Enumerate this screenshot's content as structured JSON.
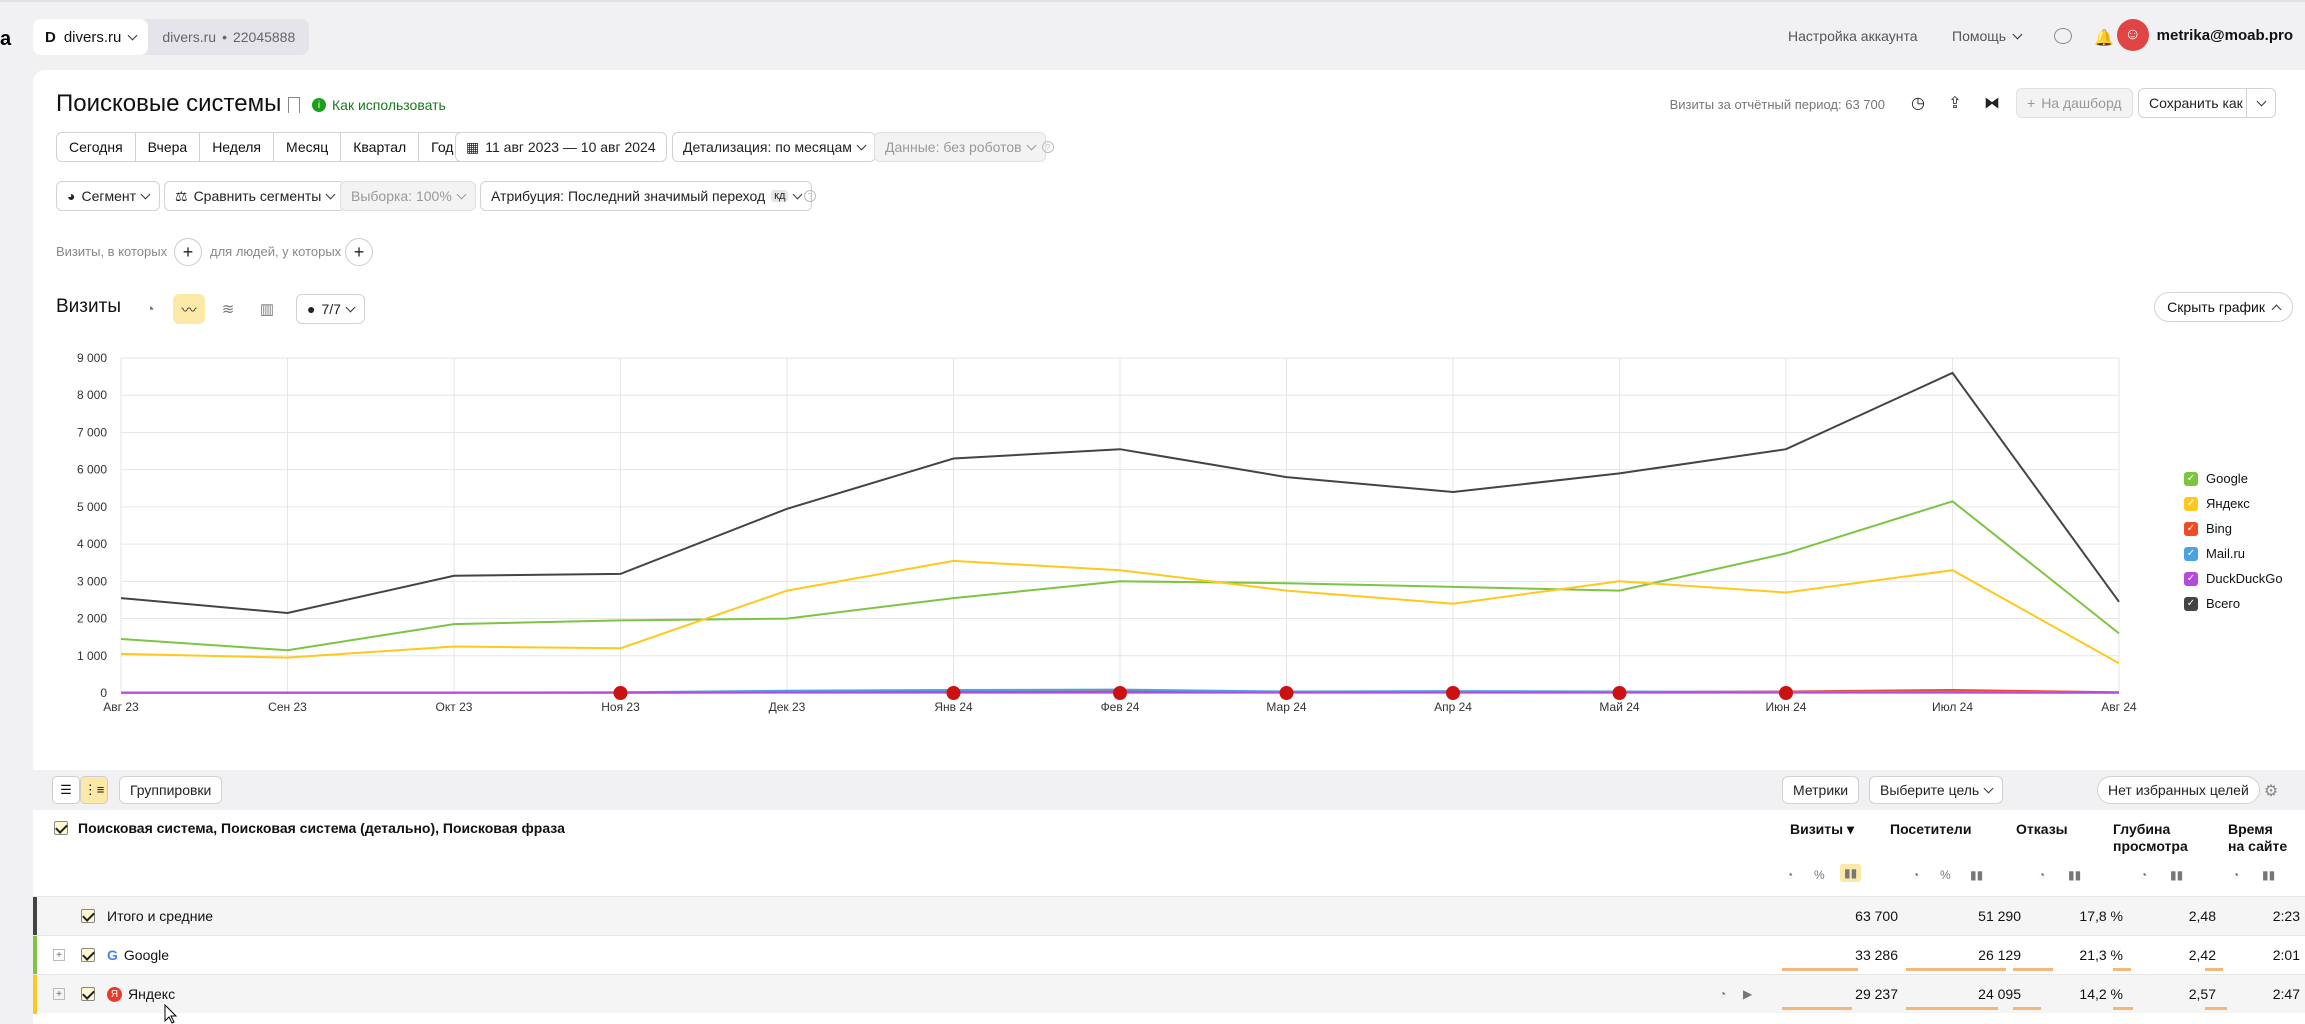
{
  "topbar": {
    "counter_name": "divers.ru",
    "counter_site": "divers.ru",
    "counter_id": "22045888",
    "account_settings": "Настройка аккаунта",
    "help": "Помощь",
    "user_email": "metrika@moab.pro"
  },
  "report": {
    "title": "Поисковые системы",
    "how_to_use": "Как использовать",
    "visits_period": "Визиты за отчётный период: 63 700",
    "to_dashboard": "На дашборд",
    "save_as": "Сохранить как"
  },
  "periods": [
    "Сегодня",
    "Вчера",
    "Неделя",
    "Месяц",
    "Квартал",
    "Год"
  ],
  "date_range": "11 авг 2023 — 10 авг 2024",
  "detail": "Детализация: по месяцам",
  "data_filter": "Данные: без роботов",
  "segment": "Сегмент",
  "compare_segments": "Сравнить сегменты",
  "sample": "Выборка: 100%",
  "attribution": "Атрибуция: Последний значимый переход",
  "attribution_badge": "кд",
  "filter": {
    "visits_where": "Визиты, в которых",
    "people_where": "для людей, у которых"
  },
  "chart_header": {
    "title": "Визиты",
    "series_count": "7/7",
    "hide_chart": "Скрыть график"
  },
  "chart_data": {
    "type": "line",
    "categories": [
      "Авг 23",
      "Сен 23",
      "Окт 23",
      "Ноя 23",
      "Дек 23",
      "Янв 24",
      "Фев 24",
      "Мар 24",
      "Апр 24",
      "Май 24",
      "Июн 24",
      "Июл 24",
      "Авг 24"
    ],
    "ylim": [
      0,
      9000
    ],
    "yticks": [
      "0",
      "1 000",
      "2 000",
      "3 000",
      "4 000",
      "5 000",
      "6 000",
      "7 000",
      "8 000",
      "9 000"
    ],
    "grid": true,
    "legend": "right",
    "series": [
      {
        "name": "Google",
        "color": "#7cc442",
        "values": [
          1450,
          1150,
          1850,
          1950,
          2000,
          2550,
          3000,
          2950,
          2850,
          2750,
          3750,
          5150,
          1600
        ]
      },
      {
        "name": "Яндекс",
        "color": "#ffc81e",
        "values": [
          1050,
          950,
          1250,
          1200,
          2750,
          3550,
          3300,
          2750,
          2400,
          3000,
          2700,
          3300,
          800
        ]
      },
      {
        "name": "Bing",
        "color": "#f04b23",
        "values": [
          10,
          10,
          10,
          10,
          20,
          30,
          40,
          30,
          30,
          30,
          40,
          80,
          20
        ]
      },
      {
        "name": "Mail.ru",
        "color": "#4aa3df",
        "values": [
          10,
          10,
          10,
          20,
          60,
          80,
          90,
          40,
          50,
          40,
          30,
          30,
          10
        ]
      },
      {
        "name": "DuckDuckGo",
        "color": "#b44bdc",
        "values": [
          5,
          5,
          5,
          5,
          10,
          10,
          10,
          10,
          10,
          10,
          10,
          10,
          5
        ]
      },
      {
        "name": "Всего",
        "color": "#444444",
        "values": [
          2550,
          2150,
          3150,
          3200,
          4950,
          6300,
          6550,
          5800,
          5400,
          5900,
          6550,
          8600,
          2450
        ]
      }
    ]
  },
  "table": {
    "groupings": "Группировки",
    "metrics_btn": "Метрики",
    "goal_btn": "Выберите цель",
    "fav_goals": "Нет избранных целей",
    "dims_header": "Поисковая система, Поисковая система (детально), Поисковая фраза",
    "columns": [
      "Визиты",
      "Посетители",
      "Отказы",
      "Глубина просмотра",
      "Время на сайте"
    ],
    "col_depth_1": "Глубина",
    "col_depth_2": "просмотра",
    "col_time_1": "Время",
    "col_time_2": "на сайте",
    "rows": [
      {
        "label": "Итого и средние",
        "visits": "63 700",
        "visitors": "51 290",
        "bounce": "17,8 %",
        "depth": "2,48",
        "time": "2:23"
      },
      {
        "label": "Google",
        "visits": "33 286",
        "visitors": "26 129",
        "bounce": "21,3 %",
        "depth": "2,42",
        "time": "2:01"
      },
      {
        "label": "Яндекс",
        "visits": "29 237",
        "visitors": "24 095",
        "bounce": "14,2 %",
        "depth": "2,57",
        "time": "2:47"
      }
    ]
  }
}
